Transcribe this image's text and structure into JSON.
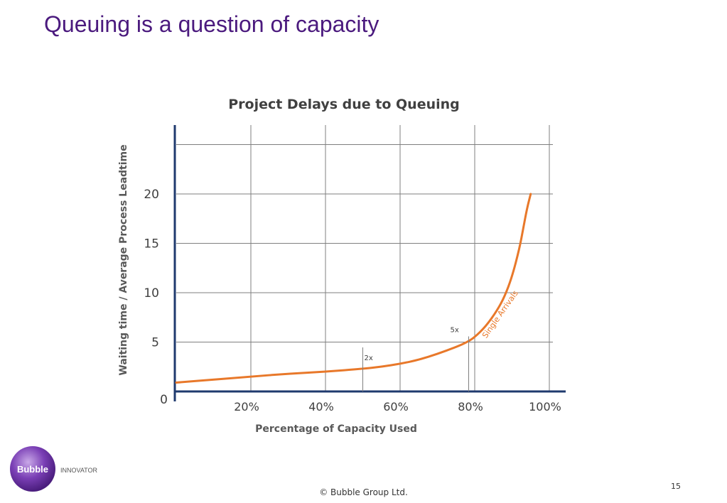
{
  "slide": {
    "title": "Queuing is a question of capacity",
    "footer": "© Bubble Group Ltd.",
    "page_number": "15",
    "logo": {
      "primary": "Bubble",
      "secondary": "INNOVATOR"
    }
  },
  "colors": {
    "title": "#4b1a7e",
    "axis": "#1f3a6e",
    "grid": "#7f7f7f",
    "curve": "#e8782a",
    "text": "#404040",
    "axis_title": "#595959"
  },
  "chart_data": {
    "type": "line",
    "title": "Project Delays due to Queuing",
    "xlabel": "Percentage of Capacity Used",
    "ylabel": "Waiting time / Average Process Leadtime",
    "xlim": [
      0,
      100
    ],
    "ylim": [
      0,
      25
    ],
    "x_ticks": [
      20,
      40,
      60,
      80,
      100
    ],
    "x_tick_labels": [
      "20%",
      "40%",
      "60%",
      "80%",
      "100%"
    ],
    "y_ticks": [
      0,
      5,
      10,
      15,
      20
    ],
    "y_tick_labels": [
      "0",
      "5",
      "10",
      "15",
      "20"
    ],
    "grid": true,
    "series": [
      {
        "x": [
          0,
          10,
          20,
          30,
          40,
          50,
          55,
          60,
          65,
          70,
          75,
          78,
          80,
          83,
          86,
          88,
          90,
          92,
          93,
          94,
          95
        ],
        "y": [
          0.9,
          1.2,
          1.5,
          1.8,
          2.0,
          2.3,
          2.5,
          2.8,
          3.2,
          3.8,
          4.5,
          5.0,
          5.5,
          6.6,
          8.2,
          9.6,
          11.6,
          14.5,
          16.5,
          18.5,
          20.0
        ]
      }
    ],
    "annotations": [
      {
        "text": "2x",
        "x": 50,
        "y": 2.3
      },
      {
        "text": "5x",
        "x": 78,
        "y": 5.0
      },
      {
        "text": "Single Arrivals",
        "x": 85,
        "y": 7.5
      }
    ]
  }
}
